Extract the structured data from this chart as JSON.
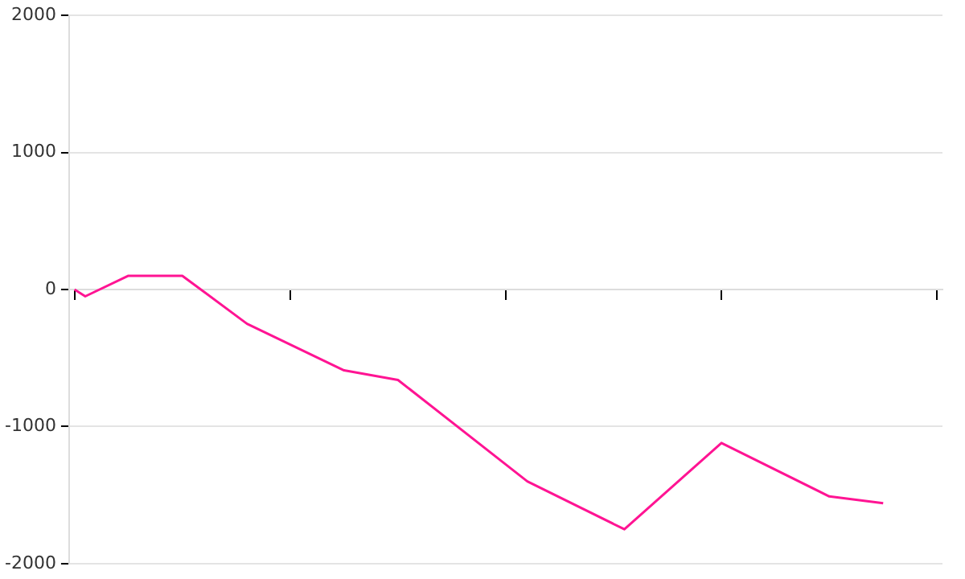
{
  "chart_data": {
    "type": "line",
    "categories": [
      null,
      null,
      null,
      null,
      null,
      null,
      null,
      null,
      null,
      null,
      null,
      null,
      null,
      null,
      null,
      null,
      null,
      null,
      null,
      null,
      null,
      null,
      null,
      null,
      null,
      null,
      null,
      null,
      null,
      null,
      null,
      null,
      null,
      null,
      null,
      null,
      null,
      null,
      null,
      null,
      null,
      null,
      null,
      null,
      null,
      null,
      null,
      null,
      null,
      null,
      null,
      null,
      null,
      null,
      null,
      null,
      null,
      null,
      null,
      null,
      null,
      null,
      null,
      null,
      null,
      null,
      null,
      null,
      null,
      null,
      null,
      null,
      null,
      null,
      null,
      null,
      null,
      null,
      null,
      null,
      null
    ],
    "series": [
      {
        "color": "#ff1493",
        "values": [
          0,
          -50,
          null,
          null,
          null,
          100,
          null,
          null,
          null,
          null,
          100,
          null,
          null,
          null,
          null,
          null,
          -250,
          null,
          null,
          null,
          null,
          null,
          null,
          null,
          null,
          -590,
          null,
          null,
          null,
          null,
          -660,
          null,
          null,
          null,
          null,
          null,
          null,
          null,
          null,
          null,
          null,
          null,
          -1400,
          null,
          null,
          null,
          null,
          null,
          null,
          null,
          null,
          -1750,
          null,
          null,
          null,
          null,
          null,
          null,
          null,
          null,
          -1120,
          null,
          null,
          null,
          null,
          null,
          null,
          null,
          null,
          null,
          -1510,
          null,
          null,
          null,
          null,
          -1560,
          null,
          null,
          null,
          null,
          null
        ]
      }
    ],
    "ylim": [
      -2000,
      2000
    ],
    "yticks": [
      -2000,
      -1000,
      0,
      1000,
      2000
    ],
    "grid": "y",
    "tick_labels": "y",
    "legend": false,
    "marker": "none",
    "line_style": "solid"
  }
}
